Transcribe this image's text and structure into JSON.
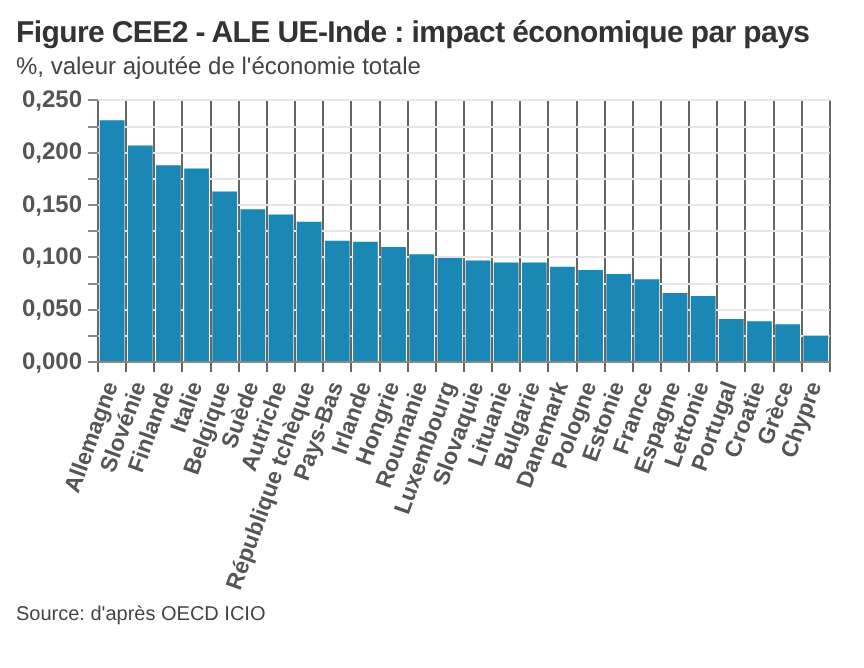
{
  "chart_data": {
    "type": "bar",
    "title": "Figure CEE2 - ALE UE-Inde : impact économique par pays",
    "subtitle": "%, valeur ajoutée de l'économie totale",
    "categories": [
      "Allemagne",
      "Slovénie",
      "Finlande",
      "Italie",
      "Belgique",
      "Suède",
      "Autriche",
      "République tchèque",
      "Pays-Bas",
      "Irlande",
      "Hongrie",
      "Roumanie",
      "Luxembourg",
      "Slovaquie",
      "Lituanie",
      "Bulgarie",
      "Danemark",
      "Pologne",
      "Estonie",
      "France",
      "Espagne",
      "Lettonie",
      "Portugal",
      "Croatie",
      "Grèce",
      "Chypre"
    ],
    "values": [
      0.231,
      0.207,
      0.188,
      0.185,
      0.163,
      0.146,
      0.141,
      0.134,
      0.116,
      0.115,
      0.11,
      0.103,
      0.0995,
      0.097,
      0.095,
      0.095,
      0.091,
      0.088,
      0.084,
      0.079,
      0.066,
      0.063,
      0.041,
      0.039,
      0.036,
      0.025
    ],
    "color": "#1b87b5",
    "ylim": [
      0,
      0.25
    ],
    "yticks": [
      {
        "value": 0,
        "label": "0,000"
      },
      {
        "value": 0.025,
        "label": null
      },
      {
        "value": 0.05,
        "label": "0,050"
      },
      {
        "value": 0.075,
        "label": null
      },
      {
        "value": 0.1,
        "label": "0,100"
      },
      {
        "value": 0.125,
        "label": null
      },
      {
        "value": 0.15,
        "label": "0,150"
      },
      {
        "value": 0.175,
        "label": null
      },
      {
        "value": 0.2,
        "label": "0,200"
      },
      {
        "value": 0.225,
        "label": null
      },
      {
        "value": 0.25,
        "label": "0,250"
      }
    ],
    "grid": true,
    "annotations": [
      "Source: d'après OECD ICIO"
    ]
  }
}
